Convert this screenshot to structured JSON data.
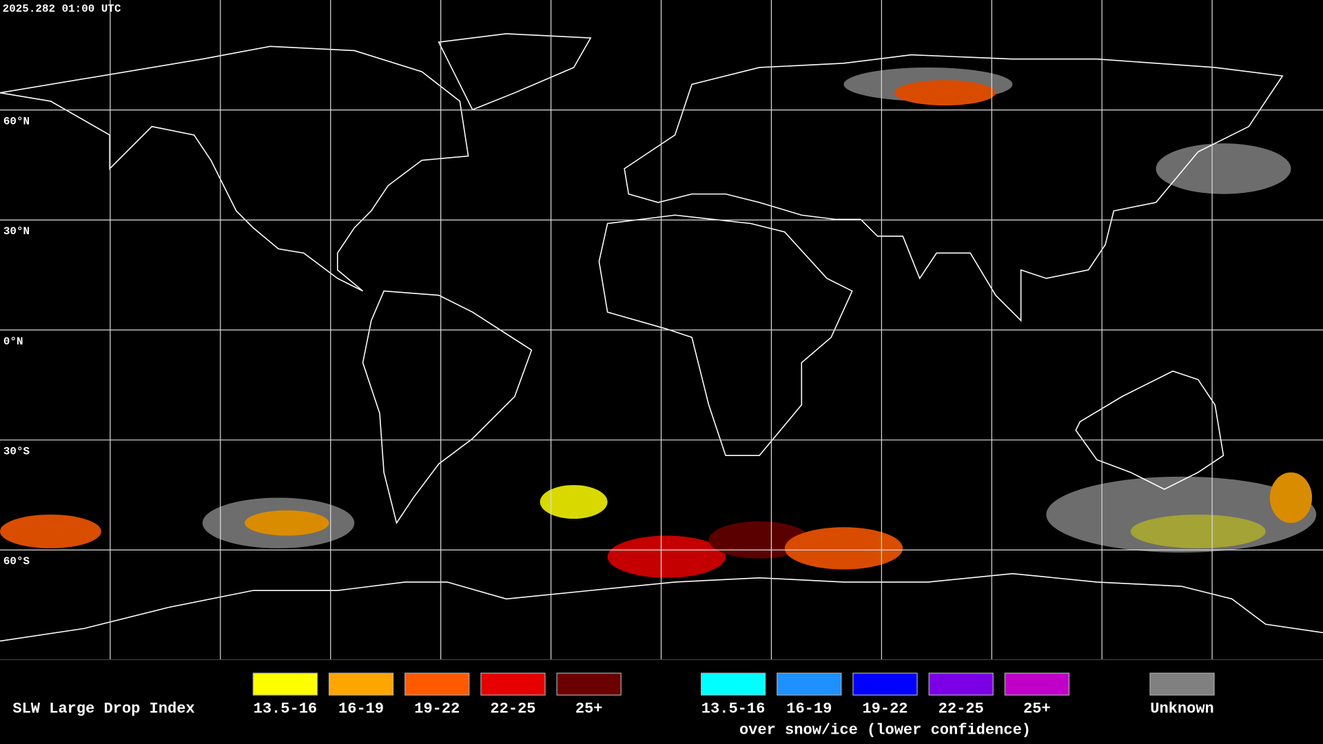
{
  "header": {
    "timestamp": "2025.282 01:00 UTC"
  },
  "map": {
    "latitude_labels": [
      "60°N",
      "30°N",
      "0°N",
      "30°S",
      "60°S"
    ]
  },
  "legend": {
    "title": "SLW Large Drop Index",
    "groups": [
      {
        "entries": [
          {
            "label": "13.5-16",
            "color": "#ffff00"
          },
          {
            "label": "16-19",
            "color": "#ffa500"
          },
          {
            "label": "19-22",
            "color": "#ff5a00"
          },
          {
            "label": "22-25",
            "color": "#e60000"
          },
          {
            "label": "25+",
            "color": "#6b0000"
          }
        ]
      },
      {
        "entries": [
          {
            "label": "13.5-16",
            "color": "#00ffff"
          },
          {
            "label": "16-19",
            "color": "#1e90ff"
          },
          {
            "label": "19-22",
            "color": "#0000ff"
          },
          {
            "label": "22-25",
            "color": "#7b00e6"
          },
          {
            "label": "25+",
            "color": "#c000c8"
          }
        ],
        "caption": "over snow/ice (lower confidence)"
      }
    ],
    "unknown": {
      "label": "Unknown",
      "color": "#808080"
    }
  }
}
